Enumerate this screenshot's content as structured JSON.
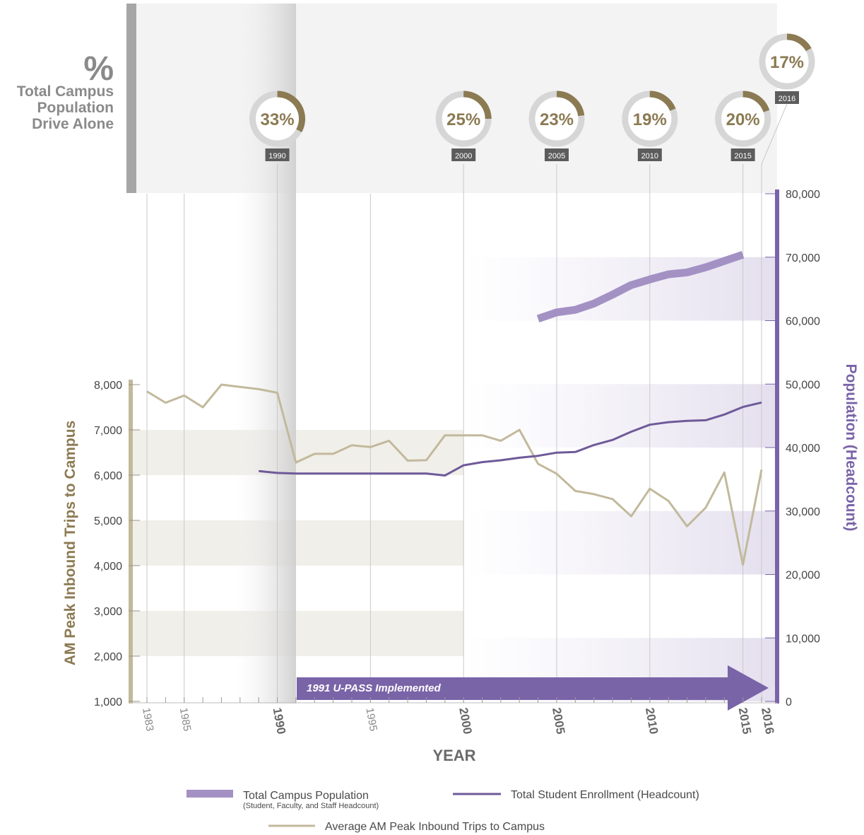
{
  "header": {
    "symbol": "%",
    "line1": "Total Campus",
    "line2": "Population",
    "line3": "Drive Alone"
  },
  "chart_data": {
    "type": "line",
    "xlabel": "YEAR",
    "ylabel_left": "AM Peak Inbound Trips to Campus",
    "ylabel_right": "Population (Headcount)",
    "x_ticks": [
      "1983",
      "1985",
      "1990",
      "1995",
      "2000",
      "2005",
      "2010",
      "2015",
      "2016"
    ],
    "xlim": [
      1983,
      2016
    ],
    "ylim_left": [
      1000,
      8000
    ],
    "ylim_right": [
      0,
      80000
    ],
    "y_ticks_left": [
      "1,000",
      "2,000",
      "3,000",
      "4,000",
      "5,000",
      "6,000",
      "7,000",
      "8,000"
    ],
    "y_ticks_right": [
      "0",
      "10,000",
      "20,000",
      "30,000",
      "40,000",
      "50,000",
      "60,000",
      "70,000",
      "80,000"
    ],
    "drive_alone": [
      {
        "year": "1990",
        "value": 33
      },
      {
        "year": "2000",
        "value": 25
      },
      {
        "year": "2005",
        "value": 23
      },
      {
        "year": "2010",
        "value": 19
      },
      {
        "year": "2015",
        "value": 20
      },
      {
        "year": "2016",
        "value": 17
      }
    ],
    "annotation": "1991 U-PASS Implemented",
    "series": [
      {
        "name": "Average AM Peak Inbound Trips to Campus",
        "axis": "left",
        "color": "#c2b99c",
        "points": [
          [
            1983,
            7850
          ],
          [
            1984,
            7600
          ],
          [
            1985,
            7760
          ],
          [
            1986,
            7500
          ],
          [
            1987,
            8000
          ],
          [
            1988,
            7950
          ],
          [
            1989,
            7900
          ],
          [
            1990,
            7820
          ],
          [
            1991,
            6280
          ],
          [
            1992,
            6470
          ],
          [
            1993,
            6470
          ],
          [
            1994,
            6660
          ],
          [
            1995,
            6620
          ],
          [
            1996,
            6760
          ],
          [
            1997,
            6320
          ],
          [
            1998,
            6330
          ],
          [
            1999,
            6880
          ],
          [
            2000,
            6880
          ],
          [
            2001,
            6880
          ],
          [
            2002,
            6760
          ],
          [
            2003,
            7000
          ],
          [
            2004,
            6250
          ],
          [
            2005,
            6030
          ],
          [
            2006,
            5650
          ],
          [
            2007,
            5580
          ],
          [
            2008,
            5470
          ],
          [
            2009,
            5090
          ],
          [
            2010,
            5700
          ],
          [
            2011,
            5430
          ],
          [
            2012,
            4870
          ],
          [
            2013,
            5280
          ],
          [
            2014,
            6060
          ],
          [
            2015,
            4020
          ],
          [
            2016,
            6120
          ]
        ]
      },
      {
        "name": "Total Student Enrollment (Headcount)",
        "axis": "right",
        "color": "#6e5a99",
        "points": [
          [
            1989,
            36300
          ],
          [
            1990,
            36000
          ],
          [
            1991,
            35900
          ],
          [
            1992,
            35900
          ],
          [
            1993,
            35900
          ],
          [
            1994,
            35900
          ],
          [
            1995,
            35900
          ],
          [
            1996,
            35900
          ],
          [
            1997,
            35900
          ],
          [
            1998,
            35900
          ],
          [
            1999,
            35600
          ],
          [
            2000,
            37200
          ],
          [
            2001,
            37700
          ],
          [
            2002,
            38000
          ],
          [
            2003,
            38400
          ],
          [
            2004,
            38700
          ],
          [
            2005,
            39200
          ],
          [
            2006,
            39300
          ],
          [
            2007,
            40400
          ],
          [
            2008,
            41200
          ],
          [
            2009,
            42500
          ],
          [
            2010,
            43600
          ],
          [
            2011,
            44000
          ],
          [
            2012,
            44200
          ],
          [
            2013,
            44300
          ],
          [
            2014,
            45200
          ],
          [
            2015,
            46400
          ],
          [
            2016,
            47100
          ]
        ]
      },
      {
        "name": "Total Campus Population",
        "note": "(Student, Faculty, and Staff Headcount)",
        "axis": "right",
        "color": "#a391c4",
        "points": [
          [
            2004,
            60300
          ],
          [
            2005,
            61300
          ],
          [
            2006,
            61700
          ],
          [
            2007,
            62700
          ],
          [
            2008,
            64100
          ],
          [
            2009,
            65600
          ],
          [
            2010,
            66500
          ],
          [
            2011,
            67300
          ],
          [
            2012,
            67600
          ],
          [
            2013,
            68400
          ],
          [
            2014,
            69400
          ],
          [
            2015,
            70400
          ]
        ]
      }
    ]
  }
}
